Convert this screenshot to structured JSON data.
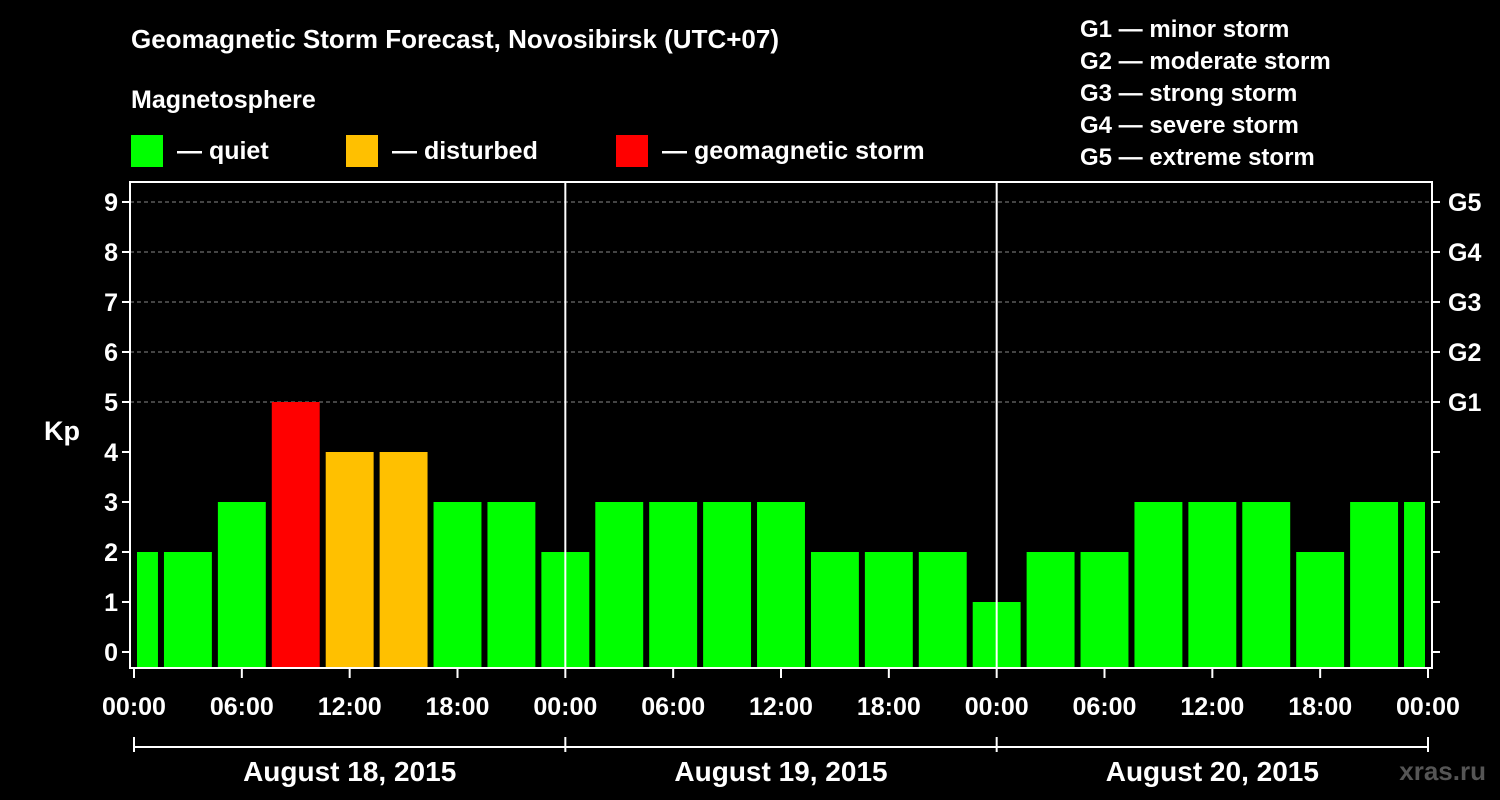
{
  "title": "Geomagnetic Storm Forecast, Novosibirsk (UTC+07)",
  "subtitle": "Magnetosphere",
  "legend": [
    {
      "label": "— quiet",
      "color": "#00ff00"
    },
    {
      "label": "— disturbed",
      "color": "#ffc000"
    },
    {
      "label": "— geomagnetic storm",
      "color": "#ff0000"
    }
  ],
  "storm_levels": [
    "G1 — minor storm",
    "G2 — moderate storm",
    "G3 — strong storm",
    "G4 — severe storm",
    "G5 — extreme storm"
  ],
  "watermark": "xras.ru",
  "chart_data": {
    "type": "bar",
    "ylabel": "Kp",
    "ylim": [
      0,
      9
    ],
    "yticks": [
      0,
      1,
      2,
      3,
      4,
      5,
      6,
      7,
      8,
      9
    ],
    "right_ticks": [
      {
        "kp": 5,
        "label": "G1"
      },
      {
        "kp": 6,
        "label": "G2"
      },
      {
        "kp": 7,
        "label": "G3"
      },
      {
        "kp": 8,
        "label": "G4"
      },
      {
        "kp": 9,
        "label": "G5"
      }
    ],
    "xtick_labels": [
      "00:00",
      "06:00",
      "12:00",
      "18:00",
      "00:00",
      "06:00",
      "12:00",
      "18:00",
      "00:00",
      "06:00",
      "12:00",
      "18:00",
      "00:00"
    ],
    "days": [
      "August 18, 2015",
      "August 19, 2015",
      "August 20, 2015"
    ],
    "interval_hours": 3,
    "values": [
      2,
      2,
      3,
      5,
      4,
      4,
      3,
      3,
      2,
      3,
      3,
      3,
      3,
      2,
      2,
      2,
      1,
      2,
      2,
      3,
      3,
      3,
      2,
      3,
      3
    ],
    "colors": {
      "quiet": "#00ff00",
      "disturbed": "#ffc000",
      "storm": "#ff0000"
    },
    "grid": true
  }
}
